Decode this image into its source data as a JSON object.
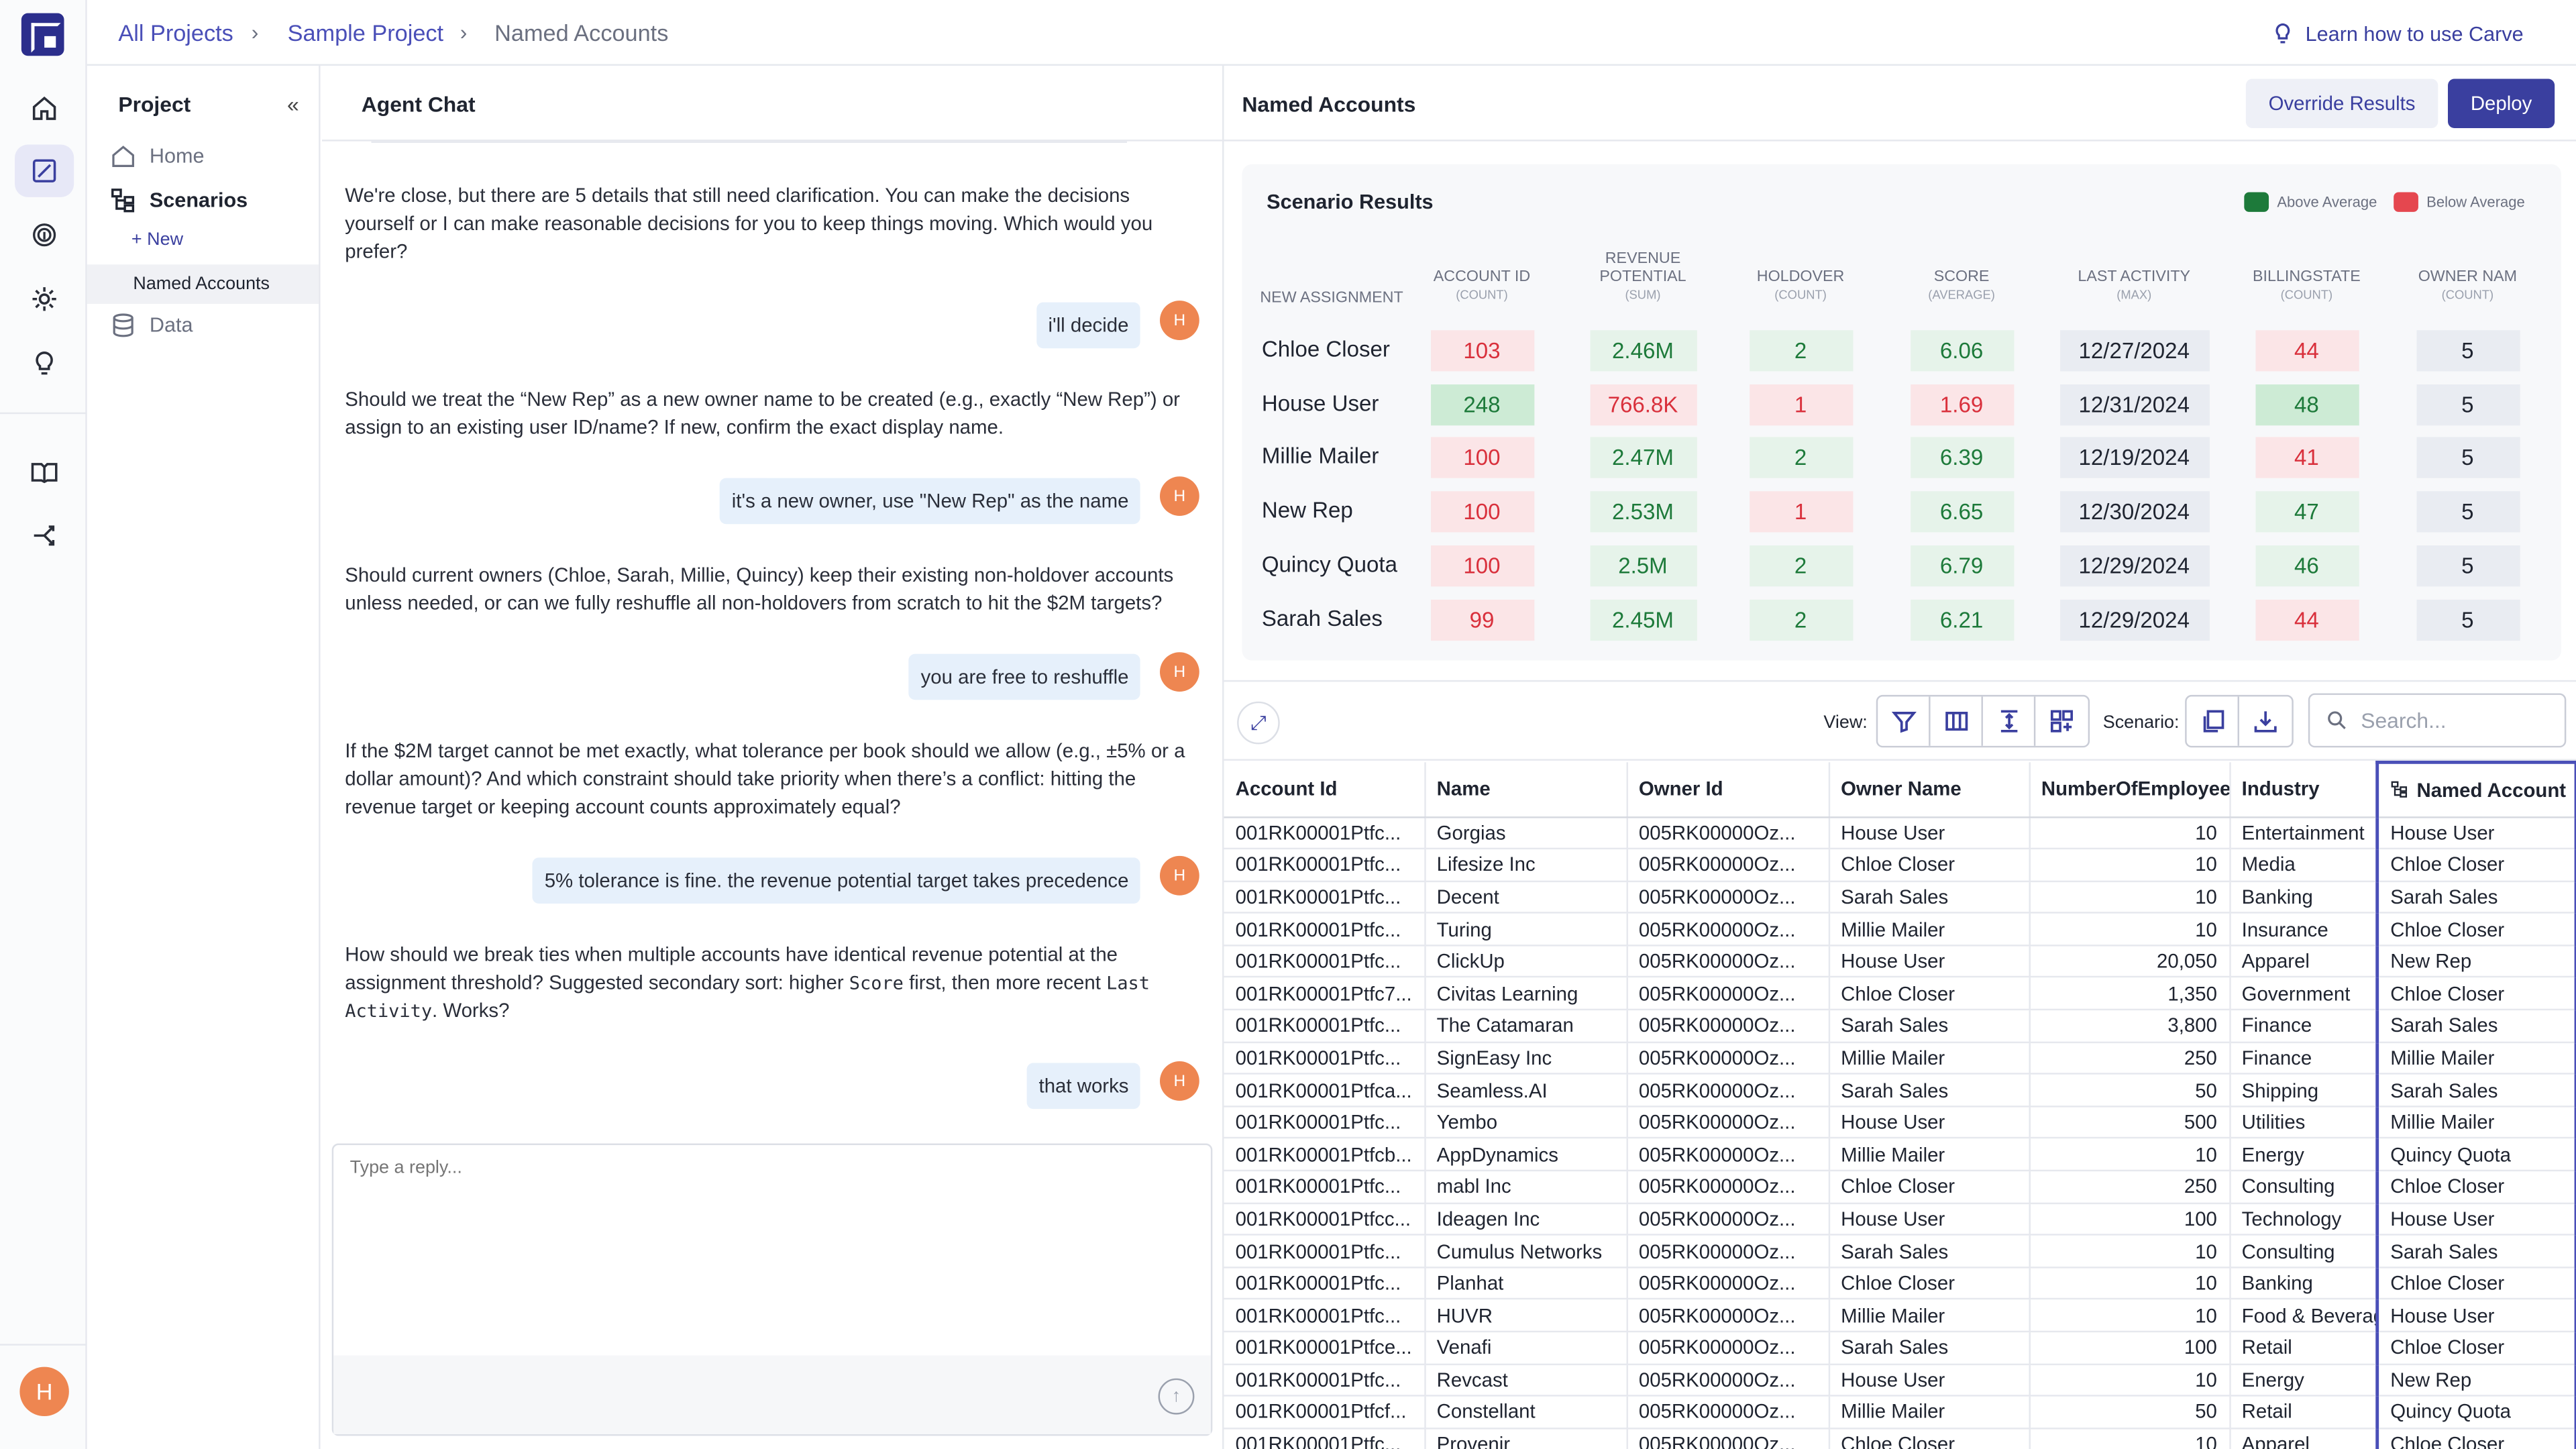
{
  "rail": {
    "items": [
      "home-icon",
      "scenarios-icon",
      "fingerprint-icon",
      "settings-icon",
      "lightbulb-icon",
      "book-icon",
      "share-icon"
    ],
    "avatar": "H"
  },
  "topbar": {
    "breadcrumb": [
      "All Projects",
      "Sample Project",
      "Named Accounts"
    ],
    "learn_link": "Learn how to use Carve"
  },
  "project": {
    "title": "Project",
    "items": [
      {
        "label": "Home",
        "icon": "home-icon"
      },
      {
        "label": "Scenarios",
        "icon": "scenarios-icon"
      },
      {
        "label": "Data",
        "icon": "database-icon"
      }
    ],
    "new_label": "+ New",
    "selected_scenario": "Named Accounts"
  },
  "chat": {
    "title": "Agent Chat",
    "user_initial": "H",
    "messages": [
      {
        "role": "agent",
        "text": "We're close, but there are 5 details that still need clarification. You can make the decisions yourself or I can make reasonable decisions for you to keep things moving. Which would you prefer?"
      },
      {
        "role": "user",
        "text": "i'll decide"
      },
      {
        "role": "agent",
        "text": "Should we treat the “New Rep” as a new owner name to be created (e.g., exactly “New Rep”) or assign to an existing user ID/name? If new, confirm the exact display name."
      },
      {
        "role": "user",
        "text": "it's a new owner, use \"New Rep\" as the name"
      },
      {
        "role": "agent",
        "text": "Should current owners (Chloe, Sarah, Millie, Quincy) keep their existing non-holdover accounts unless needed, or can we fully reshuffle all non-holdovers from scratch to hit the $2M targets?"
      },
      {
        "role": "user",
        "text": "you are free to reshuffle"
      },
      {
        "role": "agent",
        "text": "If the $2M target cannot be met exactly, what tolerance per book should we allow (e.g., ±5% or a dollar amount)? And which constraint should take priority when there’s a conflict: hitting the revenue target or keeping account counts approximately equal?"
      },
      {
        "role": "user",
        "text": "5% tolerance is fine. the revenue potential target takes precedence"
      },
      {
        "role": "agent",
        "text_parts": [
          "How should we break ties when multiple accounts have identical revenue potential at the assignment threshold? Suggested secondary sort: higher ",
          "Score",
          " first, then more recent ",
          "Last Activity",
          ". Works?"
        ]
      },
      {
        "role": "user",
        "text": "that works"
      }
    ],
    "reply_placeholder": "Type a reply..."
  },
  "panel": {
    "title": "Named Accounts",
    "override_label": "Override Results",
    "deploy_label": "Deploy"
  },
  "scenario": {
    "title": "Scenario Results",
    "legend": [
      {
        "label": "Above Average",
        "color": "#1d7a3a"
      },
      {
        "label": "Below Average",
        "color": "#e5474f"
      }
    ],
    "row_header": "NEW ASSIGNMENT",
    "columns": [
      {
        "label": "ACCOUNT ID",
        "agg": "(COUNT)"
      },
      {
        "label": "REVENUE POTENTIAL",
        "agg": "(SUM)"
      },
      {
        "label": "HOLDOVER",
        "agg": "(COUNT)"
      },
      {
        "label": "SCORE",
        "agg": "(AVERAGE)"
      },
      {
        "label": "LAST ACTIVITY",
        "agg": "(MAX)"
      },
      {
        "label": "BILLINGSTATE",
        "agg": "(COUNT)"
      },
      {
        "label": "OWNER NAM",
        "agg": "(COUNT)"
      }
    ],
    "rows": [
      {
        "name": "Chloe Closer",
        "cells": [
          {
            "v": "103",
            "s": "r"
          },
          {
            "v": "2.46M",
            "s": "g"
          },
          {
            "v": "2",
            "s": "g"
          },
          {
            "v": "6.06",
            "s": "g"
          },
          {
            "v": "12/27/2024",
            "s": "n"
          },
          {
            "v": "44",
            "s": "r"
          },
          {
            "v": "5",
            "s": "n"
          }
        ]
      },
      {
        "name": "House User",
        "cells": [
          {
            "v": "248",
            "s": "gg"
          },
          {
            "v": "766.8K",
            "s": "r"
          },
          {
            "v": "1",
            "s": "r"
          },
          {
            "v": "1.69",
            "s": "r"
          },
          {
            "v": "12/31/2024",
            "s": "n"
          },
          {
            "v": "48",
            "s": "gg"
          },
          {
            "v": "5",
            "s": "n"
          }
        ]
      },
      {
        "name": "Millie Mailer",
        "cells": [
          {
            "v": "100",
            "s": "r"
          },
          {
            "v": "2.47M",
            "s": "g"
          },
          {
            "v": "2",
            "s": "g"
          },
          {
            "v": "6.39",
            "s": "g"
          },
          {
            "v": "12/19/2024",
            "s": "n"
          },
          {
            "v": "41",
            "s": "r"
          },
          {
            "v": "5",
            "s": "n"
          }
        ]
      },
      {
        "name": "New Rep",
        "cells": [
          {
            "v": "100",
            "s": "r"
          },
          {
            "v": "2.53M",
            "s": "g"
          },
          {
            "v": "1",
            "s": "r"
          },
          {
            "v": "6.65",
            "s": "g"
          },
          {
            "v": "12/30/2024",
            "s": "n"
          },
          {
            "v": "47",
            "s": "g"
          },
          {
            "v": "5",
            "s": "n"
          }
        ]
      },
      {
        "name": "Quincy Quota",
        "cells": [
          {
            "v": "100",
            "s": "r"
          },
          {
            "v": "2.5M",
            "s": "g"
          },
          {
            "v": "2",
            "s": "g"
          },
          {
            "v": "6.79",
            "s": "g"
          },
          {
            "v": "12/29/2024",
            "s": "n"
          },
          {
            "v": "46",
            "s": "g"
          },
          {
            "v": "5",
            "s": "n"
          }
        ]
      },
      {
        "name": "Sarah Sales",
        "cells": [
          {
            "v": "99",
            "s": "r"
          },
          {
            "v": "2.45M",
            "s": "g"
          },
          {
            "v": "2",
            "s": "g"
          },
          {
            "v": "6.21",
            "s": "g"
          },
          {
            "v": "12/29/2024",
            "s": "n"
          },
          {
            "v": "44",
            "s": "r"
          },
          {
            "v": "5",
            "s": "n"
          }
        ]
      }
    ]
  },
  "toolbar": {
    "view_label": "View:",
    "view_buttons": [
      "filter-icon",
      "columns-icon",
      "row-height-icon",
      "layout-icon"
    ],
    "scenario_label": "Scenario:",
    "scenario_buttons": [
      "copy-icon",
      "download-icon"
    ],
    "search_placeholder": "Search..."
  },
  "table": {
    "columns": [
      "Account Id",
      "Name",
      "Owner Id",
      "Owner Name",
      "NumberOfEmployees",
      "Industry",
      "Named Account"
    ],
    "rows": [
      [
        "001RK00001Ptfc...",
        "Gorgias",
        "005RK00000Oz...",
        "House User",
        "10",
        "Entertainment",
        "House User"
      ],
      [
        "001RK00001Ptfc...",
        "Lifesize Inc",
        "005RK00000Oz...",
        "Chloe Closer",
        "10",
        "Media",
        "Chloe Closer"
      ],
      [
        "001RK00001Ptfc...",
        "Decent",
        "005RK00000Oz...",
        "Sarah Sales",
        "10",
        "Banking",
        "Sarah Sales"
      ],
      [
        "001RK00001Ptfc...",
        "Turing",
        "005RK00000Oz...",
        "Millie Mailer",
        "10",
        "Insurance",
        "Chloe Closer"
      ],
      [
        "001RK00001Ptfc...",
        "ClickUp",
        "005RK00000Oz...",
        "House User",
        "20,050",
        "Apparel",
        "New Rep"
      ],
      [
        "001RK00001Ptfc7...",
        "Civitas Learning",
        "005RK00000Oz...",
        "Chloe Closer",
        "1,350",
        "Government",
        "Chloe Closer"
      ],
      [
        "001RK00001Ptfc...",
        "The Catamaran",
        "005RK00000Oz...",
        "Sarah Sales",
        "3,800",
        "Finance",
        "Sarah Sales"
      ],
      [
        "001RK00001Ptfc...",
        "SignEasy Inc",
        "005RK00000Oz...",
        "Millie Mailer",
        "250",
        "Finance",
        "Millie Mailer"
      ],
      [
        "001RK00001Ptfca...",
        "Seamless.AI",
        "005RK00000Oz...",
        "Sarah Sales",
        "50",
        "Shipping",
        "Sarah Sales"
      ],
      [
        "001RK00001Ptfc...",
        "Yembo",
        "005RK00000Oz...",
        "House User",
        "500",
        "Utilities",
        "Millie Mailer"
      ],
      [
        "001RK00001Ptfcb...",
        "AppDynamics",
        "005RK00000Oz...",
        "Millie Mailer",
        "10",
        "Energy",
        "Quincy Quota"
      ],
      [
        "001RK00001Ptfc...",
        "mabl Inc",
        "005RK00000Oz...",
        "Chloe Closer",
        "250",
        "Consulting",
        "Chloe Closer"
      ],
      [
        "001RK00001Ptfcc...",
        "Ideagen Inc",
        "005RK00000Oz...",
        "House User",
        "100",
        "Technology",
        "House User"
      ],
      [
        "001RK00001Ptfc...",
        "Cumulus Networks",
        "005RK00000Oz...",
        "Sarah Sales",
        "10",
        "Consulting",
        "Sarah Sales"
      ],
      [
        "001RK00001Ptfc...",
        "Planhat",
        "005RK00000Oz...",
        "Chloe Closer",
        "10",
        "Banking",
        "Chloe Closer"
      ],
      [
        "001RK00001Ptfc...",
        "HUVR",
        "005RK00000Oz...",
        "Millie Mailer",
        "10",
        "Food & Beverage",
        "House User"
      ],
      [
        "001RK00001Ptfce...",
        "Venafi",
        "005RK00000Oz...",
        "Sarah Sales",
        "100",
        "Retail",
        "Chloe Closer"
      ],
      [
        "001RK00001Ptfc...",
        "Revcast",
        "005RK00000Oz...",
        "House User",
        "10",
        "Energy",
        "New Rep"
      ],
      [
        "001RK00001Ptfcf...",
        "Constellant",
        "005RK00000Oz...",
        "Millie Mailer",
        "50",
        "Retail",
        "Quincy Quota"
      ],
      [
        "001RK00001Ptfc...",
        "Provenir",
        "005RK00000Oz...",
        "Chloe Closer",
        "10",
        "Apparel",
        "Chloe Closer"
      ]
    ]
  }
}
